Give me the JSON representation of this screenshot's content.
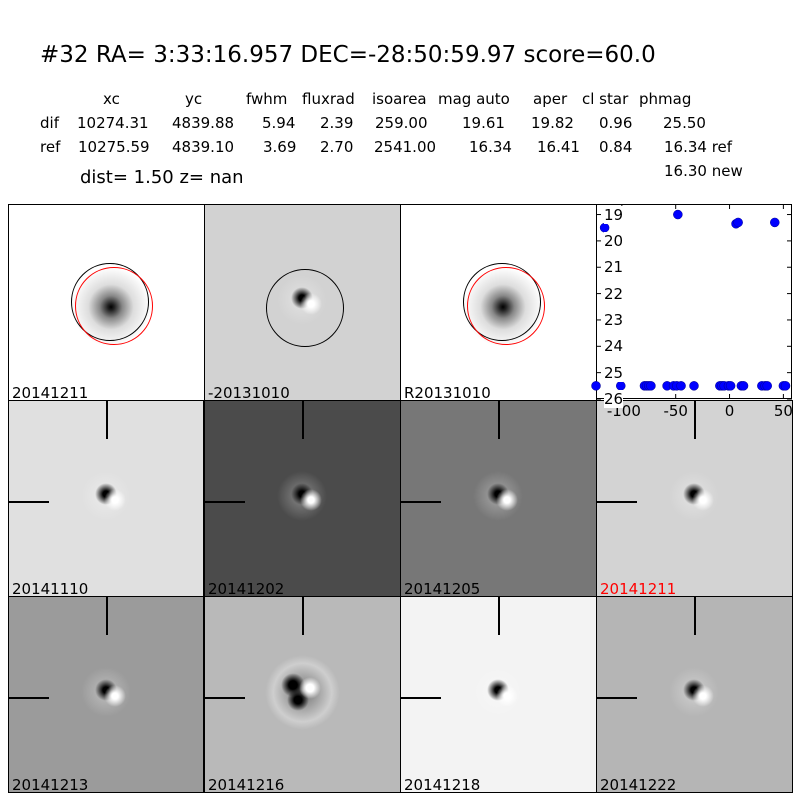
{
  "header": {
    "title": "#32   RA= 3:33:16.957 DEC=-28:50:59.97      score=60.0",
    "columns": [
      "xc",
      "yc",
      "fwhm",
      "fluxrad",
      "isoarea",
      "mag auto",
      "aper",
      "cl star",
      "phmag"
    ],
    "rows": [
      {
        "label": "dif",
        "values": [
          "10274.31",
          "4839.88",
          "5.94",
          "2.39",
          "259.00",
          "19.61",
          "19.82",
          "0.96",
          "25.50"
        ]
      },
      {
        "label": "ref",
        "values": [
          "10275.59",
          "4839.10",
          "3.69",
          "2.70",
          "2541.00",
          "16.34",
          "16.41",
          "0.84",
          "16.34 ref"
        ]
      }
    ],
    "extra": "16.30 new",
    "dist": "dist=  1.50      z=   nan"
  },
  "panels": [
    {
      "label": "20141211",
      "bg": "#ffffff",
      "type": "ref",
      "circles": true
    },
    {
      "label": "-20131010",
      "bg": "#d2d2d2",
      "type": "dif",
      "circles": "black"
    },
    {
      "label": "R20131010",
      "bg": "#ffffff",
      "type": "ref",
      "circles": true
    },
    {
      "label": "20141110",
      "bg": "#e0e0e0",
      "type": "dif",
      "cross": true
    },
    {
      "label": "20141202",
      "bg": "#4b4b4b",
      "type": "dif",
      "cross": true
    },
    {
      "label": "20141205",
      "bg": "#777777",
      "type": "dif",
      "cross": true
    },
    {
      "label": "20141211",
      "bg": "#d3d3d3",
      "type": "dif",
      "cross": true,
      "labelColor": "#ff0000"
    },
    {
      "label": "20141213",
      "bg": "#9b9b9b",
      "type": "dif",
      "cross": true
    },
    {
      "label": "20141216",
      "bg": "#b9b9b9",
      "type": "multi",
      "cross": true
    },
    {
      "label": "20141218",
      "bg": "#f3f3f3",
      "type": "dif",
      "cross": true
    },
    {
      "label": "20141222",
      "bg": "#b5b5b5",
      "type": "dif",
      "cross": true
    }
  ],
  "chart_data": {
    "type": "scatter",
    "xlim": [
      -124,
      58
    ],
    "ylim": [
      26,
      18.6
    ],
    "y_inverted": true,
    "xticks": [
      "-100",
      "-50",
      "0",
      "50"
    ],
    "xtick_values": [
      -100,
      -50,
      0,
      50
    ],
    "yticks": [
      "19",
      "20",
      "21",
      "22",
      "23",
      "24",
      "25",
      "26"
    ],
    "ytick_values": [
      19,
      20,
      21,
      22,
      23,
      24,
      25,
      26
    ],
    "color": "#0000ff",
    "points": [
      [
        -124,
        25.5
      ],
      [
        -116,
        19.5
      ],
      [
        -101,
        25.5
      ],
      [
        -79,
        25.5
      ],
      [
        -77,
        25.5
      ],
      [
        -75,
        25.5
      ],
      [
        -73,
        25.5
      ],
      [
        -58,
        25.5
      ],
      [
        -52,
        25.5
      ],
      [
        -49,
        25.5
      ],
      [
        -45,
        25.5
      ],
      [
        -48,
        19.0
      ],
      [
        -33,
        25.5
      ],
      [
        -9,
        25.5
      ],
      [
        -7,
        25.5
      ],
      [
        -5,
        25.5
      ],
      [
        -1,
        25.5
      ],
      [
        1,
        25.5
      ],
      [
        6,
        19.35
      ],
      [
        8,
        19.3
      ],
      [
        11,
        25.5
      ],
      [
        13,
        25.5
      ],
      [
        30,
        25.5
      ],
      [
        33,
        25.5
      ],
      [
        35,
        25.5
      ],
      [
        42,
        19.3
      ],
      [
        50,
        25.5
      ],
      [
        52,
        25.5
      ]
    ]
  }
}
